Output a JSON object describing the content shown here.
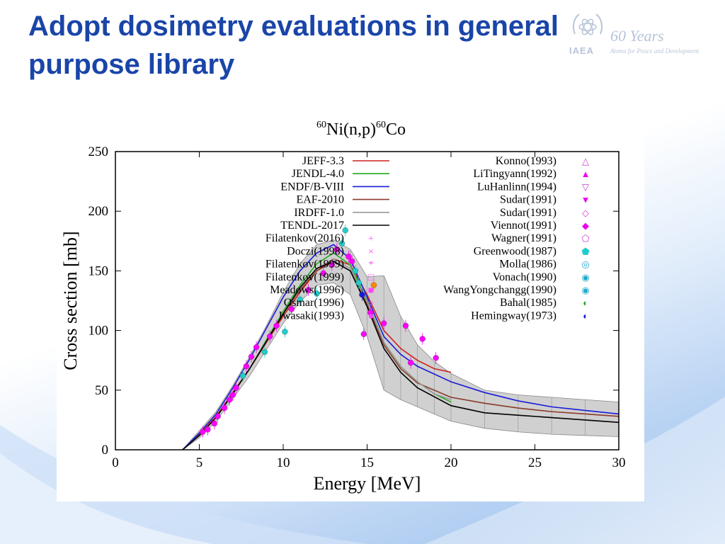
{
  "slide": {
    "title_line1": "Adopt dosimetry evaluations in general",
    "title_line2": "purpose library"
  },
  "logo": {
    "years": "60 Years",
    "org": "IAEA",
    "tagline": "Atoms for Peace and Development"
  },
  "colors": {
    "title": "#1a45a8",
    "JEFF": "#cc2222",
    "JENDL": "#22aa22",
    "ENDF": "#1a1adb",
    "EAF": "#8b3a2a",
    "IRDFF": "#999999",
    "TENDL": "#000000",
    "exp_magenta": "#ff00ff",
    "exp_cyan": "#22cccc"
  },
  "chart_data": {
    "type": "line",
    "title_pre": "60",
    "title_main": "Ni(n,p)",
    "title_sup2": "60",
    "title_post": "Co",
    "xlabel": "Energy [MeV]",
    "ylabel": "Cross section [mb]",
    "xlim": [
      0,
      30
    ],
    "ylim": [
      0,
      250
    ],
    "xticks": [
      "0",
      "5",
      "10",
      "15",
      "20",
      "25",
      "30"
    ],
    "yticks": [
      "0",
      "50",
      "100",
      "150",
      "200",
      "250"
    ],
    "grid": false,
    "legend_position": "top",
    "series": [
      {
        "name": "JEFF-3.3",
        "color": "#cc2222",
        "x": [
          4,
          5,
          6,
          7,
          8,
          9,
          10,
          11,
          12,
          13,
          14,
          15,
          16,
          17,
          18,
          19,
          20
        ],
        "y": [
          0,
          13,
          28,
          48,
          68,
          90,
          112,
          132,
          150,
          160,
          155,
          130,
          100,
          85,
          75,
          68,
          65
        ]
      },
      {
        "name": "JENDL-4.0",
        "color": "#22aa22",
        "x": [
          4,
          5,
          6,
          7,
          8,
          9,
          10,
          11,
          12,
          13,
          14,
          15,
          16,
          17,
          18,
          19,
          20
        ],
        "y": [
          0,
          12,
          27,
          47,
          68,
          92,
          116,
          138,
          156,
          165,
          155,
          125,
          90,
          70,
          57,
          47,
          40
        ]
      },
      {
        "name": "ENDF/B-VIII",
        "color": "#1a1adb",
        "x": [
          4,
          5,
          6,
          7,
          8,
          9,
          10,
          11,
          12,
          13,
          14,
          15,
          16,
          17,
          18,
          20,
          22,
          24,
          26,
          28,
          30
        ],
        "y": [
          0,
          14,
          30,
          52,
          76,
          102,
          128,
          150,
          165,
          172,
          160,
          128,
          95,
          80,
          70,
          57,
          48,
          41,
          36,
          33,
          30
        ]
      },
      {
        "name": "EAF-2010",
        "color": "#8b3a2a",
        "x": [
          4,
          5,
          6,
          7,
          8,
          9,
          10,
          11,
          12,
          13,
          14,
          15,
          16,
          17,
          18,
          20,
          22,
          24,
          26,
          28,
          30
        ],
        "y": [
          0,
          12,
          27,
          47,
          68,
          91,
          114,
          134,
          150,
          158,
          150,
          122,
          88,
          68,
          56,
          44,
          39,
          35,
          32,
          30,
          28
        ]
      },
      {
        "name": "IRDFF-1.0",
        "color": "#999999",
        "x": [
          4,
          5,
          6,
          7,
          8,
          9,
          10,
          11,
          12,
          13,
          14,
          15,
          16,
          17,
          18,
          19,
          20
        ],
        "y": [
          0,
          12,
          27,
          47,
          68,
          91,
          114,
          135,
          152,
          160,
          152,
          124,
          90,
          70,
          57,
          47,
          42
        ]
      },
      {
        "name": "TENDL-2017",
        "color": "#000000",
        "x": [
          4,
          5,
          6,
          7,
          8,
          9,
          10,
          11,
          12,
          13,
          14,
          15,
          16,
          17,
          18,
          20,
          22,
          24,
          26,
          28,
          30
        ],
        "y": [
          0,
          12,
          27,
          47,
          68,
          91,
          114,
          136,
          152,
          158,
          150,
          120,
          85,
          65,
          52,
          37,
          31,
          29,
          27,
          25,
          23
        ]
      }
    ],
    "uncertainty_band": {
      "x": [
        4,
        5,
        6,
        7,
        8,
        9,
        10,
        11,
        12,
        13,
        14,
        15,
        16,
        17,
        18,
        19,
        20,
        22,
        24,
        26,
        28,
        30
      ],
      "lower": [
        0,
        10,
        24,
        43,
        62,
        84,
        106,
        124,
        138,
        140,
        130,
        95,
        50,
        42,
        36,
        30,
        24,
        18,
        15,
        13,
        12,
        11
      ],
      "upper": [
        0,
        16,
        32,
        54,
        78,
        104,
        132,
        156,
        172,
        176,
        168,
        145,
        146,
        112,
        88,
        74,
        64,
        50,
        46,
        44,
        42,
        40
      ]
    },
    "experimental_legend_left": [
      {
        "name": "Filatenkov(2016)",
        "symbol": "+",
        "color": "#ff44ff"
      },
      {
        "name": "Doczi(1998)",
        "symbol": "×",
        "color": "#ff44ff"
      },
      {
        "name": "Filatenkov(1999)",
        "symbol": "*",
        "color": "#ff44ff"
      },
      {
        "name": "Filatenkov(1999)",
        "symbol": "□",
        "color": "#ff44ff"
      },
      {
        "name": "Meadows(1996)",
        "symbol": "■",
        "color": "#ff44ff"
      },
      {
        "name": "Osmar(1996)",
        "symbol": "○",
        "color": "#ff44ff"
      },
      {
        "name": "Iwasaki(1993)",
        "symbol": "●",
        "color": "#ff44ff"
      }
    ],
    "experimental_legend_right": [
      {
        "name": "Konno(1993)",
        "symbol": "△",
        "color": "#cc44cc"
      },
      {
        "name": "LiTingyann(1992)",
        "symbol": "▲",
        "color": "#ee00ee"
      },
      {
        "name": "LuHanlinn(1994)",
        "symbol": "▽",
        "color": "#cc44cc"
      },
      {
        "name": "Sudar(1991)",
        "symbol": "▼",
        "color": "#ee00ee"
      },
      {
        "name": "Sudar(1991)",
        "symbol": "◇",
        "color": "#cc44cc"
      },
      {
        "name": "Viennot(1991)",
        "symbol": "◆",
        "color": "#ee00ee"
      },
      {
        "name": "Wagner(1991)",
        "symbol": "⬠",
        "color": "#cc44cc"
      },
      {
        "name": "Greenwood(1987)",
        "symbol": "⬟",
        "color": "#22cccc"
      },
      {
        "name": "Molla(1986)",
        "symbol": "◎",
        "color": "#22aacc"
      },
      {
        "name": "Vonach(1990)",
        "symbol": "◉",
        "color": "#22aacc"
      },
      {
        "name": "WangYongchangg(1990)",
        "symbol": "◉",
        "color": "#22aacc"
      },
      {
        "name": "Bahal(1985)",
        "symbol": "◐",
        "color": "#22aa22"
      },
      {
        "name": "Hemingway(1973)",
        "symbol": "◐",
        "color": "#1a1adb"
      }
    ],
    "experimental_points": [
      {
        "x": 5.2,
        "y": 15,
        "c": "#ff00ff"
      },
      {
        "x": 5.5,
        "y": 17,
        "c": "#ff00ff"
      },
      {
        "x": 5.9,
        "y": 22,
        "c": "#ff00ff"
      },
      {
        "x": 6.1,
        "y": 28,
        "c": "#ff00ff"
      },
      {
        "x": 6.5,
        "y": 35,
        "c": "#ff00ff"
      },
      {
        "x": 6.8,
        "y": 42,
        "c": "#ff00ff"
      },
      {
        "x": 7.0,
        "y": 46,
        "c": "#ff00ff"
      },
      {
        "x": 7.2,
        "y": 52,
        "c": "#ff00ff"
      },
      {
        "x": 7.6,
        "y": 62,
        "c": "#22cccc"
      },
      {
        "x": 7.8,
        "y": 70,
        "c": "#ff00ff"
      },
      {
        "x": 8.1,
        "y": 78,
        "c": "#ff00ff"
      },
      {
        "x": 8.4,
        "y": 86,
        "c": "#ff00ff"
      },
      {
        "x": 8.9,
        "y": 82,
        "c": "#22cccc"
      },
      {
        "x": 9.2,
        "y": 95,
        "c": "#ff00ff"
      },
      {
        "x": 9.6,
        "y": 104,
        "c": "#ff00ff"
      },
      {
        "x": 10.1,
        "y": 99,
        "c": "#22cccc"
      },
      {
        "x": 10.5,
        "y": 118,
        "c": "#ff00ff"
      },
      {
        "x": 11.0,
        "y": 126,
        "c": "#22cccc"
      },
      {
        "x": 11.5,
        "y": 134,
        "c": "#ff00ff"
      },
      {
        "x": 12.0,
        "y": 131,
        "c": "#22cccc"
      },
      {
        "x": 12.4,
        "y": 148,
        "c": "#ff00ff"
      },
      {
        "x": 12.9,
        "y": 155,
        "c": "#ff00ff"
      },
      {
        "x": 13.2,
        "y": 168,
        "c": "#ff00ff"
      },
      {
        "x": 13.5,
        "y": 173,
        "c": "#22cccc"
      },
      {
        "x": 13.7,
        "y": 184,
        "c": "#22cccc"
      },
      {
        "x": 13.9,
        "y": 162,
        "c": "#ff00ff"
      },
      {
        "x": 14.1,
        "y": 158,
        "c": "#ff00ff"
      },
      {
        "x": 14.3,
        "y": 150,
        "c": "#22cccc"
      },
      {
        "x": 14.5,
        "y": 140,
        "c": "#22cccc"
      },
      {
        "x": 14.7,
        "y": 130,
        "c": "#1a1adb"
      },
      {
        "x": 14.8,
        "y": 97,
        "c": "#ff00ff"
      },
      {
        "x": 15.2,
        "y": 115,
        "c": "#ff00ff"
      },
      {
        "x": 15.4,
        "y": 138,
        "c": "#ff8800"
      },
      {
        "x": 16.0,
        "y": 106,
        "c": "#ff00ff"
      },
      {
        "x": 17.3,
        "y": 104,
        "c": "#ff00ff"
      },
      {
        "x": 17.6,
        "y": 73,
        "c": "#ff00ff"
      },
      {
        "x": 18.3,
        "y": 93,
        "c": "#ff00ff"
      },
      {
        "x": 19.1,
        "y": 77,
        "c": "#ff00ff"
      }
    ]
  }
}
